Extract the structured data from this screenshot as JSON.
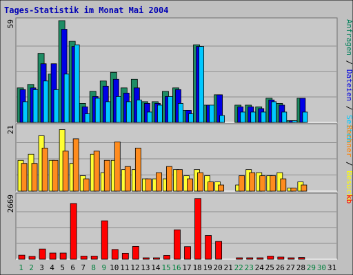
{
  "chart_data": {
    "type": "bar",
    "title": "Tages-Statistik im Monat Mai 2004",
    "categories": [
      "1",
      "2",
      "3",
      "4",
      "5",
      "6",
      "7",
      "8",
      "9",
      "10",
      "11",
      "12",
      "13",
      "14",
      "15",
      "16",
      "17",
      "18",
      "19",
      "20",
      "21",
      "22",
      "23",
      "24",
      "25",
      "26",
      "27",
      "28",
      "29",
      "30",
      "31"
    ],
    "weekend_days": [
      "1",
      "2",
      "8",
      "9",
      "15",
      "16",
      "22",
      "23",
      "29",
      "30"
    ],
    "colors": {
      "frame_bg": "#c0c0c0",
      "panel_bg": "#c8c8c8",
      "gridline": "#8c8c8c",
      "title": "#0000b4",
      "weekday_tick": "#000000",
      "weekend_tick": "#00803c",
      "label_sep": "#000000"
    },
    "panels": [
      {
        "key": "hits",
        "ymax_label": "59",
        "ylim": [
          0,
          59
        ],
        "right_label_parts": [
          {
            "text": "Anfragen",
            "color": "#00805a"
          },
          {
            "text": " / ",
            "color": "#000000"
          },
          {
            "text": "Dateien",
            "color": "#0000e0"
          },
          {
            "text": " / ",
            "color": "#000000"
          },
          {
            "text": "Seiten",
            "color": "#00c8ff"
          }
        ],
        "series": [
          {
            "name": "Anfragen",
            "color": "#1e8c64",
            "values": [
              20,
              22,
              40,
              28,
              59,
              47,
              11,
              18,
              24,
              29,
              20,
              25,
              12,
              12,
              18,
              20,
              7,
              45,
              10,
              16,
              0,
              10,
              10,
              9,
              14,
              11,
              1,
              14,
              0,
              0,
              0
            ]
          },
          {
            "name": "Dateien",
            "color": "#0000e6",
            "values": [
              19,
              20,
              34,
              34,
              54,
              44,
              9,
              15,
              21,
              25,
              17,
              20,
              11,
              11,
              15,
              19,
              7,
              44,
              10,
              16,
              0,
              9,
              9,
              8,
              13,
              10,
              1,
              14,
              0,
              0,
              0
            ]
          },
          {
            "name": "Seiten",
            "color": "#00c8ff",
            "values": [
              12,
              19,
              24,
              19,
              28,
              45,
              5,
              14,
              12,
              15,
              12,
              13,
              6,
              10,
              15,
              11,
              5,
              44,
              10,
              4,
              0,
              6,
              6,
              6,
              12,
              6,
              1,
              6,
              0,
              0,
              0
            ]
          }
        ]
      },
      {
        "key": "visits",
        "ymax_label": "21",
        "ylim": [
          0,
          21
        ],
        "right_label_parts": [
          {
            "text": "Rechner",
            "color": "#ff8000"
          },
          {
            "text": " / ",
            "color": "#000000"
          },
          {
            "text": "Besuche",
            "color": "#ffff00"
          }
        ],
        "series": [
          {
            "name": "Besuche",
            "color": "#ffff33",
            "values": [
              10,
              12,
              18,
              10,
              20,
              9,
              5,
              12,
              6,
              10,
              7,
              7,
              4,
              4,
              4,
              7,
              5,
              7,
              5,
              3,
              0,
              2,
              7,
              6,
              5,
              6,
              1,
              3,
              0,
              0,
              0
            ]
          },
          {
            "name": "Rechner",
            "color": "#ff8c1e",
            "values": [
              9,
              9,
              14,
              10,
              13,
              17,
              4,
              13,
              10,
              16,
              8,
              14,
              4,
              6,
              8,
              7,
              4,
              6,
              3,
              2,
              0,
              5,
              6,
              5,
              5,
              4,
              1,
              2,
              0,
              0,
              0
            ]
          }
        ]
      },
      {
        "key": "kb",
        "ymax_label": "2669",
        "ylim": [
          0,
          2669
        ],
        "right_label_parts": [
          {
            "text": "kb",
            "color": "#ff0000"
          }
        ],
        "series": [
          {
            "name": "kb",
            "color": "#ff0000",
            "values": [
              170,
              120,
              430,
              260,
              260,
              2350,
              130,
              130,
              1620,
              410,
              250,
              540,
              10,
              10,
              160,
              1240,
              530,
              2560,
              1000,
              750,
              0,
              20,
              20,
              10,
              130,
              90,
              5,
              70,
              0,
              0,
              0
            ]
          }
        ]
      }
    ]
  }
}
